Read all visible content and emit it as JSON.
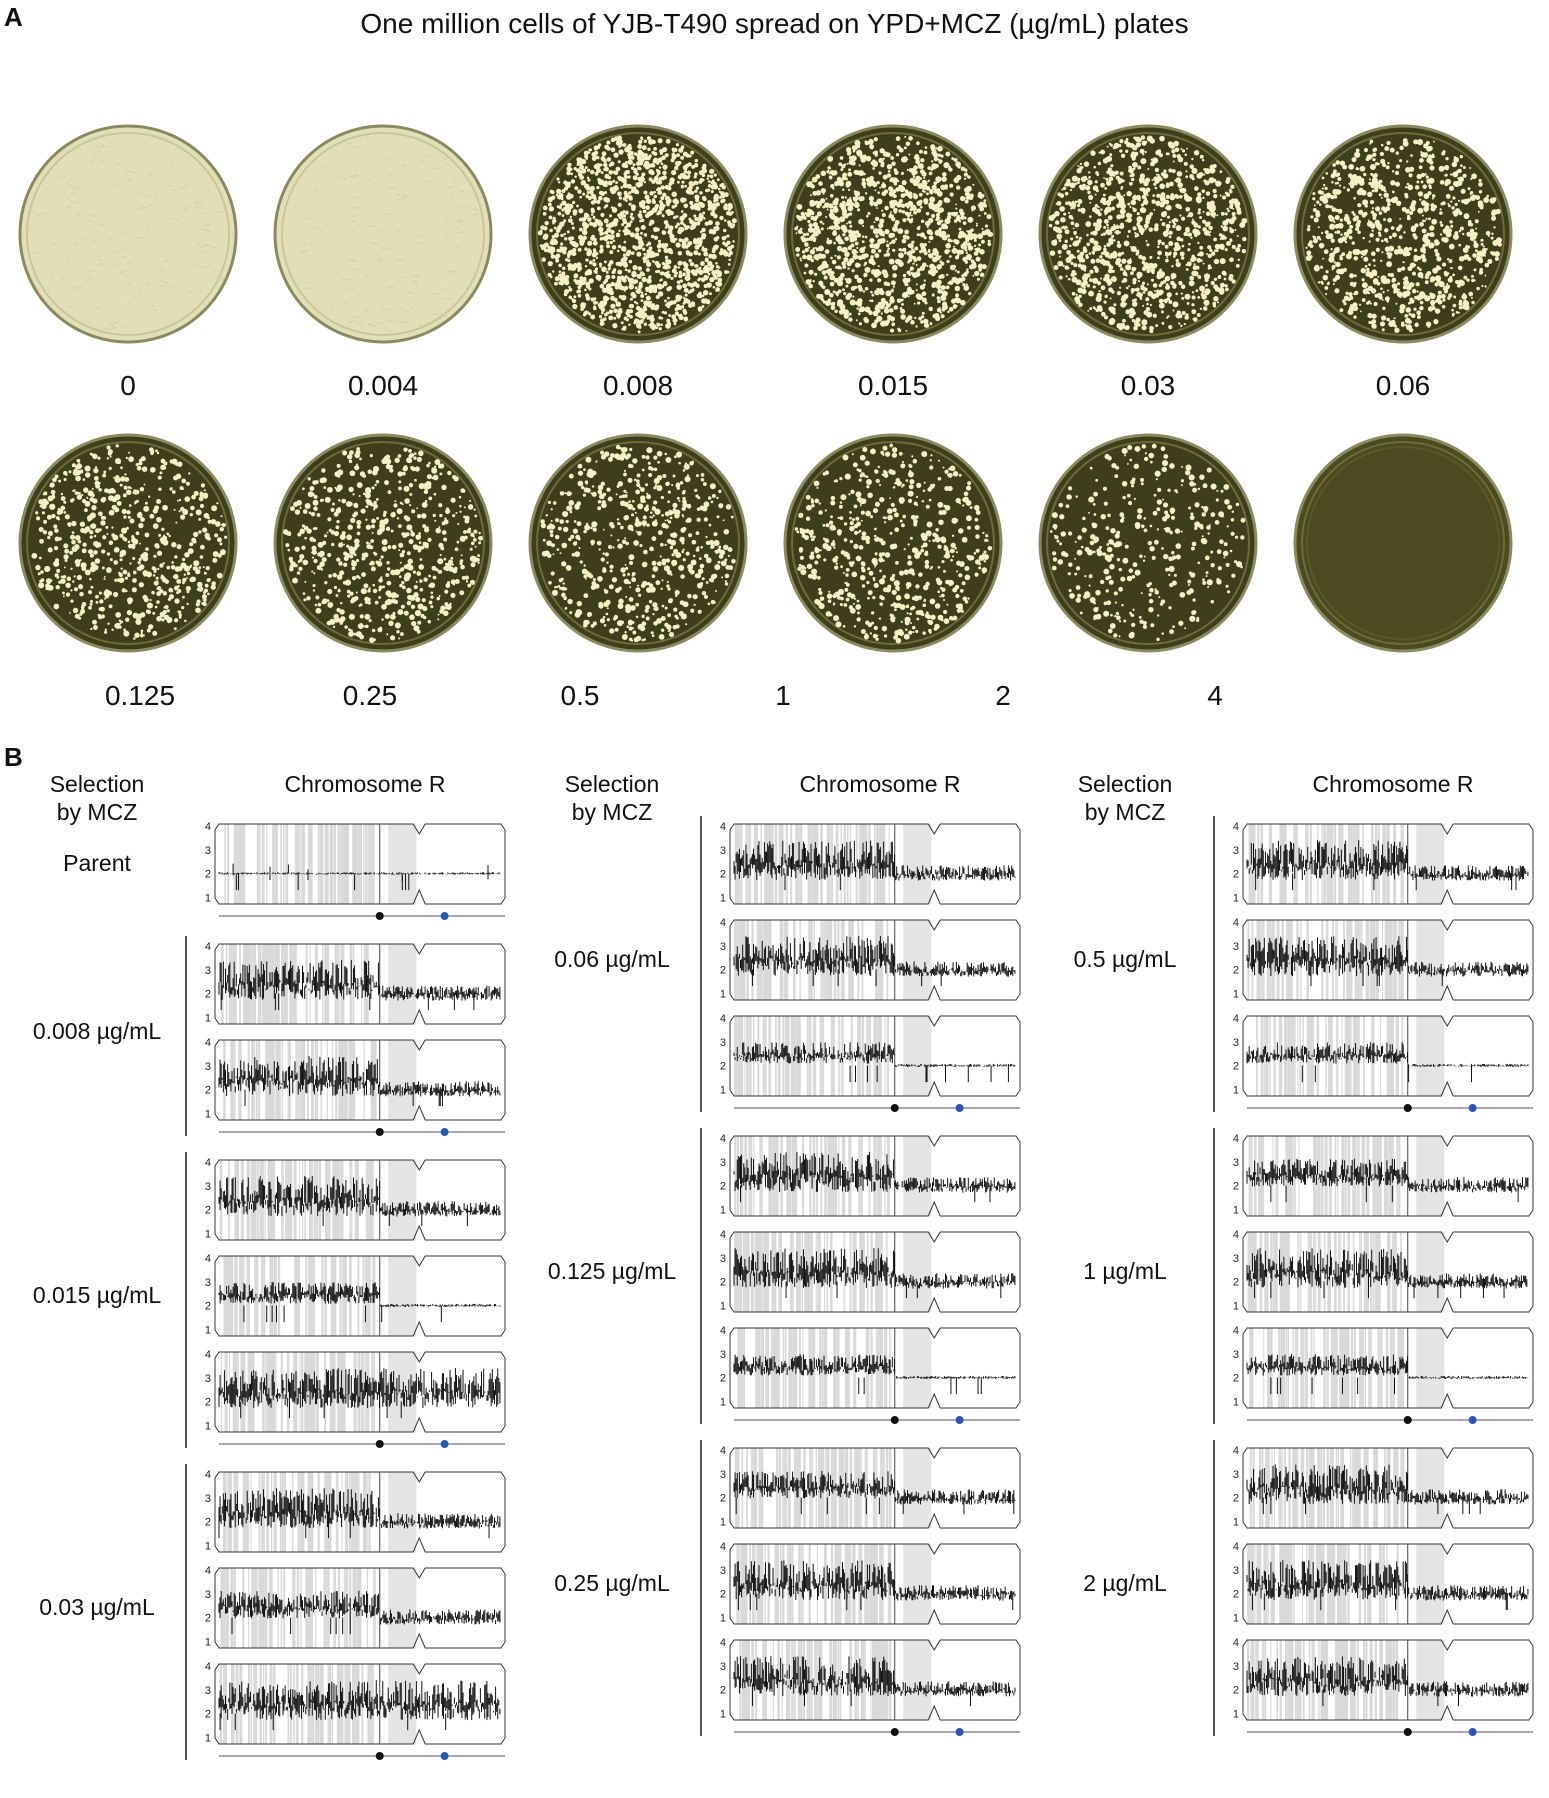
{
  "panel_a": {
    "letter": "A",
    "title": "One million cells of YJB-T490 spread on YPD+MCZ (µg/mL) plates",
    "plates": [
      {
        "label": "0",
        "colony_density": "lawn"
      },
      {
        "label": "0.004",
        "colony_density": "lawn"
      },
      {
        "label": "0.008",
        "colony_density": 1.0
      },
      {
        "label": "0.015",
        "colony_density": 0.8
      },
      {
        "label": "0.03",
        "colony_density": 0.7
      },
      {
        "label": "0.06",
        "colony_density": 0.6
      },
      {
        "label": "0.125",
        "colony_density": 0.45
      },
      {
        "label": "0.25",
        "colony_density": 0.45
      },
      {
        "label": "0.5",
        "colony_density": 0.42
      },
      {
        "label": "1",
        "colony_density": 0.4
      },
      {
        "label": "2",
        "colony_density": 0.25
      },
      {
        "label": "4",
        "colony_density": 0.0
      }
    ]
  },
  "panel_b": {
    "letter": "B",
    "header_selection": "Selection\nby MCZ",
    "header_chromosome": "Chromosome R",
    "y_ticks": [
      "4",
      "3",
      "2",
      "1"
    ],
    "columns": [
      {
        "groups": [
          {
            "label": "Parent",
            "tracks": [
              {
                "profile": "parent"
              }
            ]
          },
          {
            "label": "0.008 µg/mL",
            "tracks": [
              {
                "profile": "tri_left"
              },
              {
                "profile": "tri_left"
              }
            ]
          },
          {
            "label": "0.015 µg/mL",
            "tracks": [
              {
                "profile": "tri_left"
              },
              {
                "profile": "tri_left_clean"
              },
              {
                "profile": "tri_full"
              }
            ]
          },
          {
            "label": "0.03 µg/mL",
            "tracks": [
              {
                "profile": "tri_left"
              },
              {
                "profile": "tri_left_noisy"
              },
              {
                "profile": "tri_full"
              }
            ]
          }
        ]
      },
      {
        "groups": [
          {
            "label": "0.06 µg/mL",
            "tracks": [
              {
                "profile": "tri_left"
              },
              {
                "profile": "tri_left"
              },
              {
                "profile": "tri_left_clean"
              }
            ]
          },
          {
            "label": "0.125 µg/mL",
            "tracks": [
              {
                "profile": "tri_left"
              },
              {
                "profile": "tri_left"
              },
              {
                "profile": "tri_left_clean"
              }
            ]
          },
          {
            "label": "0.25 µg/mL",
            "tracks": [
              {
                "profile": "tri_left_noisy"
              },
              {
                "profile": "tri_left"
              },
              {
                "profile": "tri_left"
              }
            ]
          }
        ]
      },
      {
        "groups": [
          {
            "label": "0.5 µg/mL",
            "tracks": [
              {
                "profile": "tri_left"
              },
              {
                "profile": "tri_left"
              },
              {
                "profile": "tri_left_clean"
              }
            ]
          },
          {
            "label": "1 µg/mL",
            "tracks": [
              {
                "profile": "tri_left_noisy"
              },
              {
                "profile": "tri_left"
              },
              {
                "profile": "tri_left_clean"
              }
            ]
          },
          {
            "label": "2 µg/mL",
            "tracks": [
              {
                "profile": "tri_left"
              },
              {
                "profile": "tri_left"
              },
              {
                "profile": "tri_left"
              }
            ]
          }
        ]
      }
    ],
    "colors": {
      "centromere_dot": "#111111",
      "marker_dot": "#2a56b8",
      "trace": "#111111",
      "shading": "#d9d9d9"
    }
  }
}
